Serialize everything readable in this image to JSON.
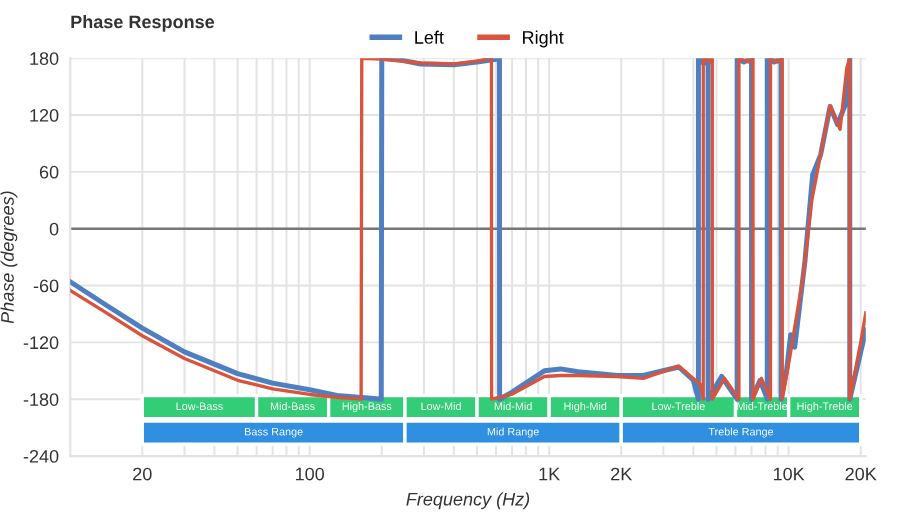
{
  "chart_data": {
    "type": "line",
    "title": "Phase Response",
    "xlabel": "Frequency (Hz)",
    "ylabel": "Phase (degrees)",
    "log": "x",
    "xlim": [
      10,
      21000
    ],
    "ylim": [
      -240,
      180
    ],
    "xticks": [
      {
        "value": 20,
        "label": "20"
      },
      {
        "value": 30,
        "label": null
      },
      {
        "value": 40,
        "label": null
      },
      {
        "value": 50,
        "label": null
      },
      {
        "value": 60,
        "label": null
      },
      {
        "value": 70,
        "label": null
      },
      {
        "value": 80,
        "label": null
      },
      {
        "value": 90,
        "label": null
      },
      {
        "value": 100,
        "label": "100"
      },
      {
        "value": 200,
        "label": null
      },
      {
        "value": 300,
        "label": null
      },
      {
        "value": 400,
        "label": null
      },
      {
        "value": 500,
        "label": null
      },
      {
        "value": 600,
        "label": null
      },
      {
        "value": 700,
        "label": null
      },
      {
        "value": 800,
        "label": null
      },
      {
        "value": 900,
        "label": null
      },
      {
        "value": 1000,
        "label": "1K"
      },
      {
        "value": 2000,
        "label": "2K"
      },
      {
        "value": 3000,
        "label": null
      },
      {
        "value": 4000,
        "label": null
      },
      {
        "value": 5000,
        "label": null
      },
      {
        "value": 6000,
        "label": null
      },
      {
        "value": 7000,
        "label": null
      },
      {
        "value": 8000,
        "label": null
      },
      {
        "value": 9000,
        "label": null
      },
      {
        "value": 10000,
        "label": "10K"
      },
      {
        "value": 20000,
        "label": "20K"
      }
    ],
    "yticks": [
      -240,
      -180,
      -120,
      -60,
      0,
      60,
      120,
      180
    ],
    "grid": true,
    "legend": "top",
    "marker": "none",
    "line_style": "solid",
    "series": [
      {
        "name": "Left",
        "color": "#4f7fc0",
        "x": [
          10,
          14,
          20,
          30,
          50,
          70,
          100,
          130,
          180,
          199,
          200,
          240,
          291,
          400,
          500,
          600,
          620,
          621,
          695,
          955,
          1117,
          1320,
          1930,
          2470,
          3475,
          4000,
          4200,
          4201,
          4300,
          4500,
          4610,
          4611,
          5250,
          6100,
          6101,
          6500,
          7000,
          7001,
          7600,
          8150,
          8151,
          8700,
          9300,
          9301,
          9800,
          10200,
          10600,
          11700,
          12600,
          13600,
          14900,
          16000,
          17500,
          18000,
          18001,
          20000,
          21000
        ],
        "values": [
          -56,
          -80,
          -105,
          -130,
          -153,
          -163,
          -170,
          -176,
          -179,
          -180,
          180,
          178,
          174,
          173,
          176,
          179,
          180,
          -180,
          -173,
          -150,
          -148,
          -151,
          -155,
          -155,
          -146,
          -160,
          -180,
          180,
          176,
          175,
          180,
          -180,
          -156,
          -180,
          180,
          176,
          180,
          -180,
          -160,
          -180,
          180,
          176,
          180,
          -180,
          -150,
          -112,
          -125,
          -34,
          57,
          78,
          129,
          110,
          135,
          180,
          -180,
          -130,
          -107
        ]
      },
      {
        "name": "Right",
        "color": "#d9543d",
        "x": [
          10,
          14,
          20,
          30,
          50,
          70,
          100,
          130,
          164,
          165,
          200,
          291,
          400,
          500,
          574,
          575,
          695,
          955,
          1117,
          1320,
          1930,
          2470,
          3475,
          4300,
          4400,
          4401,
          4700,
          4800,
          4801,
          5400,
          6200,
          6201,
          6800,
          7100,
          7101,
          7700,
          8400,
          8401,
          9000,
          9400,
          9401,
          10200,
          11500,
          12500,
          14000,
          14900,
          16400,
          17500,
          18000,
          18001,
          20000,
          21000
        ],
        "values": [
          -65,
          -88,
          -113,
          -137,
          -160,
          -169,
          -175,
          -178,
          -180,
          180,
          179,
          175,
          174,
          177,
          180,
          -180,
          -175,
          -156,
          -155,
          -155,
          -156,
          -158,
          -145,
          -165,
          -180,
          180,
          176,
          180,
          -180,
          -158,
          -180,
          180,
          176,
          180,
          -180,
          -158,
          -180,
          180,
          176,
          180,
          -180,
          -130,
          -50,
          30,
          95,
          130,
          105,
          170,
          180,
          -180,
          -120,
          -89
        ]
      }
    ],
    "ref_lines": [
      {
        "axis": "y",
        "value": 0,
        "color": "#777777"
      }
    ],
    "bands": [
      {
        "axis": "x",
        "from": 20,
        "to": 60,
        "label": "Low-Bass",
        "color": "#33cc77"
      },
      {
        "axis": "x",
        "from": 60,
        "to": 120,
        "label": "Mid-Bass",
        "color": "#33cc77"
      },
      {
        "axis": "x",
        "from": 120,
        "to": 250,
        "label": "High-Bass",
        "color": "#33cc77"
      },
      {
        "axis": "x",
        "from": 250,
        "to": 500,
        "label": "Low-Mid",
        "color": "#33cc77"
      },
      {
        "axis": "x",
        "from": 500,
        "to": 1000,
        "label": "Mid-Mid",
        "color": "#33cc77"
      },
      {
        "axis": "x",
        "from": 1000,
        "to": 2000,
        "label": "High-Mid",
        "color": "#33cc77"
      },
      {
        "axis": "x",
        "from": 2000,
        "to": 6000,
        "label": "Low-Treble",
        "color": "#33cc77"
      },
      {
        "axis": "x",
        "from": 6000,
        "to": 10000,
        "label": "Mid-Treble",
        "color": "#33cc77"
      },
      {
        "axis": "x",
        "from": 10000,
        "to": 20000,
        "label": "High-Treble",
        "color": "#33cc77"
      },
      {
        "axis": "x",
        "from": 20,
        "to": 250,
        "label": "Bass Range",
        "color": "#2f8fe0"
      },
      {
        "axis": "x",
        "from": 250,
        "to": 2000,
        "label": "Mid Range",
        "color": "#2f8fe0"
      },
      {
        "axis": "x",
        "from": 2000,
        "to": 20000,
        "label": "Treble Range",
        "color": "#2f8fe0"
      }
    ]
  }
}
